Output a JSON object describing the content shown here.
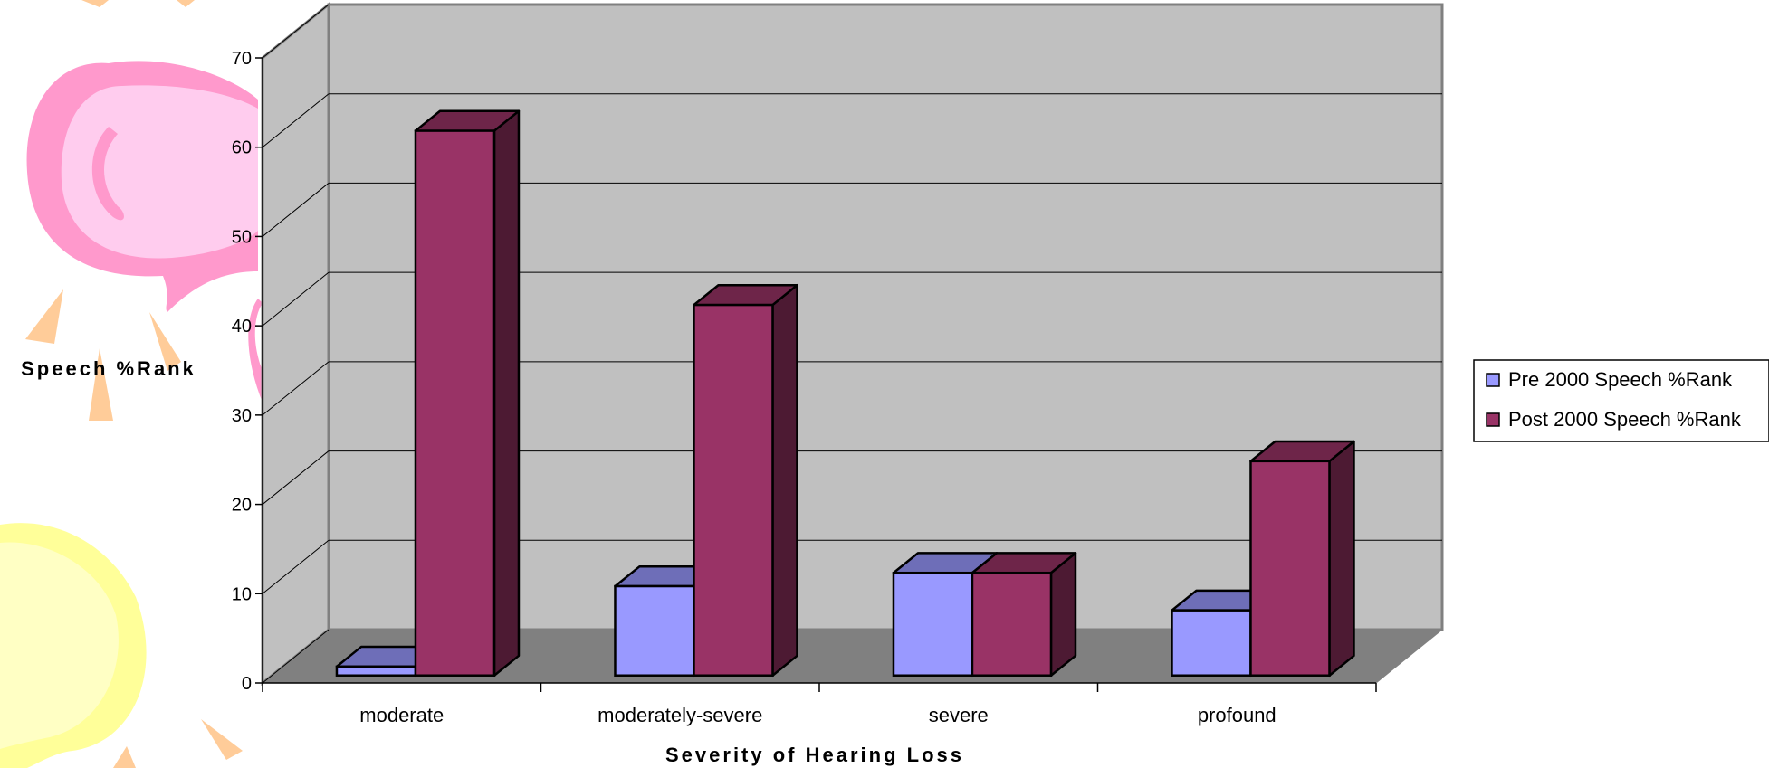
{
  "chart_data": {
    "type": "bar",
    "style": "3d-clustered-column",
    "categories": [
      "moderate",
      "moderately-severe",
      "severe",
      "profound"
    ],
    "series": [
      {
        "name": "Pre 2000 Speech %Rank",
        "values": [
          1,
          10,
          11.5,
          7.3
        ],
        "color": "#9999ff"
      },
      {
        "name": "Post 2000 Speech %Rank",
        "values": [
          61,
          41.5,
          11.5,
          24
        ],
        "color": "#993366"
      }
    ],
    "ylabel": "Speech %Rank",
    "xlabel": "Severity of Hearing Loss",
    "ylim": [
      0,
      70
    ],
    "yticks": [
      0,
      10,
      20,
      30,
      40,
      50,
      60,
      70
    ],
    "grid": true,
    "legend_position": "right",
    "wall_color": "#c0c0c0",
    "floor_color": "#808080"
  }
}
